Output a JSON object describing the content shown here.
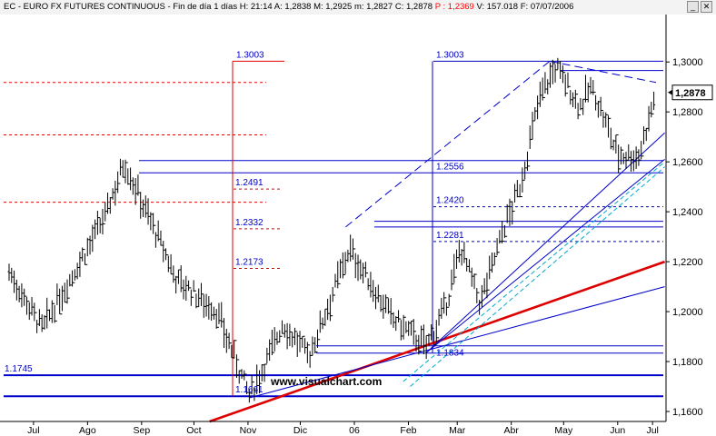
{
  "window": {
    "title_prefix": "EC - EURO FX FUTURES CONTINUOUS - Fin de día 1 días",
    "fields": {
      "time": "H: 21:14",
      "open": "A: 1,2838",
      "high": "M: 1,2925",
      "low": "m: 1,2827",
      "close": "C: 1,2878",
      "p": "P : 1,2369",
      "volume": "V: 157.018",
      "date": "F: 07/07/2006"
    },
    "buttons": {
      "minimize": "_",
      "close": "✕"
    }
  },
  "watermark": "www.visualchart.com",
  "chart_data": {
    "type": "candlestick",
    "title": "EURO FX FUTURES CONTINUOUS",
    "x_months": [
      "Jul",
      "Ago",
      "Sep",
      "Oct",
      "Nov",
      "Dic",
      "06",
      "Feb",
      "Mar",
      "Abr",
      "May",
      "Jun",
      "Jul"
    ],
    "y_ticks": [
      "1,3000",
      "1,2800",
      "1,2600",
      "1,2400",
      "1,2200",
      "1,2000",
      "1,1800",
      "1,1600"
    ],
    "ylim": [
      1.156,
      1.319
    ],
    "last_price": "1,2878",
    "level_labels": {
      "l13003a": "1.3003",
      "l12491": "1.2491",
      "l12332": "1.2332",
      "l12173": "1.2173",
      "l11745": "1.1745",
      "l11661": "1.1661",
      "l13003b": "1.3003",
      "l12556": "1.2556",
      "l12420": "1.2420",
      "l12281": "1.2281",
      "l11834": "1.1834"
    },
    "levels": {
      "blue_horizontal": [
        1.3003,
        1.2966,
        1.2605,
        1.2556,
        1.2362,
        1.2339,
        1.1863,
        1.1834,
        1.1745,
        1.1661
      ],
      "blue_dotted": [
        1.242,
        1.2281
      ],
      "red_dotted": [
        1.2918,
        1.2708,
        1.2491,
        1.2438,
        1.2332,
        1.2173,
        1.1661
      ]
    },
    "anchor_points": [
      {
        "date": "2005-07-01",
        "price": 1.216
      },
      {
        "date": "2005-07-20",
        "price": 1.193
      },
      {
        "date": "2005-08-25",
        "price": 1.238
      },
      {
        "date": "2005-09-05",
        "price": 1.26
      },
      {
        "date": "2005-10-05",
        "price": 1.213
      },
      {
        "date": "2005-10-28",
        "price": 1.2
      },
      {
        "date": "2005-11-16",
        "price": 1.166
      },
      {
        "date": "2005-12-05",
        "price": 1.195
      },
      {
        "date": "2005-12-20",
        "price": 1.182
      },
      {
        "date": "2006-01-12",
        "price": 1.225
      },
      {
        "date": "2006-02-05",
        "price": 1.198
      },
      {
        "date": "2006-02-25",
        "price": 1.186
      },
      {
        "date": "2006-03-08",
        "price": 1.201
      },
      {
        "date": "2006-03-17",
        "price": 1.226
      },
      {
        "date": "2006-03-28",
        "price": 1.203
      },
      {
        "date": "2006-04-10",
        "price": 1.232
      },
      {
        "date": "2006-04-20",
        "price": 1.25
      },
      {
        "date": "2006-05-02",
        "price": 1.288
      },
      {
        "date": "2006-05-11",
        "price": 1.298
      },
      {
        "date": "2006-05-24",
        "price": 1.282
      },
      {
        "date": "2006-05-31",
        "price": 1.29
      },
      {
        "date": "2006-06-15",
        "price": 1.263
      },
      {
        "date": "2006-06-27",
        "price": 1.262
      },
      {
        "date": "2006-07-07",
        "price": 1.2878
      }
    ],
    "colors": {
      "candles": "#000000",
      "blue_lines": "#0000cc",
      "red_lines": "#dd0000",
      "cyan_channel": "#00aacc",
      "axis_text": "#000000"
    }
  }
}
